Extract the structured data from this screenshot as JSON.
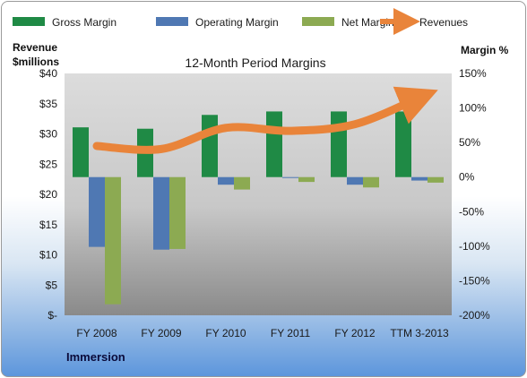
{
  "chart_data": {
    "type": "bar",
    "title": "12-Month Period Margins",
    "left_axis_title": [
      "Revenue",
      "$millions"
    ],
    "right_axis_title": "Margin %",
    "footer_label": "Immersion",
    "categories": [
      "FY 2008",
      "FY 2009",
      "FY 2010",
      "FY 2011",
      "FY 2012",
      "TTM 3-2013"
    ],
    "left_axis": {
      "min": 0,
      "max": 40,
      "step": 5,
      "tick_labels": [
        "$-",
        "$5",
        "$10",
        "$15",
        "$20",
        "$25",
        "$30",
        "$35",
        "$40"
      ]
    },
    "right_axis": {
      "min": -200,
      "max": 150,
      "step": 50,
      "tick_labels": [
        "-200%",
        "-150%",
        "-100%",
        "-50%",
        "0%",
        "50%",
        "100%",
        "150%"
      ]
    },
    "series": [
      {
        "name": "Gross Margin",
        "kind": "bar",
        "axis": "right",
        "color": "#1f8a45",
        "values": [
          72,
          70,
          90,
          95,
          95,
          95
        ]
      },
      {
        "name": "Operating Margin",
        "kind": "bar",
        "axis": "right",
        "color": "#4f78b3",
        "values": [
          -101,
          -105,
          -11,
          -1,
          -11,
          -5
        ]
      },
      {
        "name": "Net Margin",
        "kind": "bar",
        "axis": "right",
        "color": "#8caa52",
        "values": [
          -184,
          -104,
          -18,
          -7,
          -15,
          -8
        ]
      },
      {
        "name": "Revenues",
        "kind": "line",
        "axis": "left",
        "color": "#e9843a",
        "values": [
          28.0,
          27.5,
          31.0,
          30.5,
          31.6,
          36.0
        ]
      }
    ],
    "legend_position": "top",
    "grid": false
  }
}
